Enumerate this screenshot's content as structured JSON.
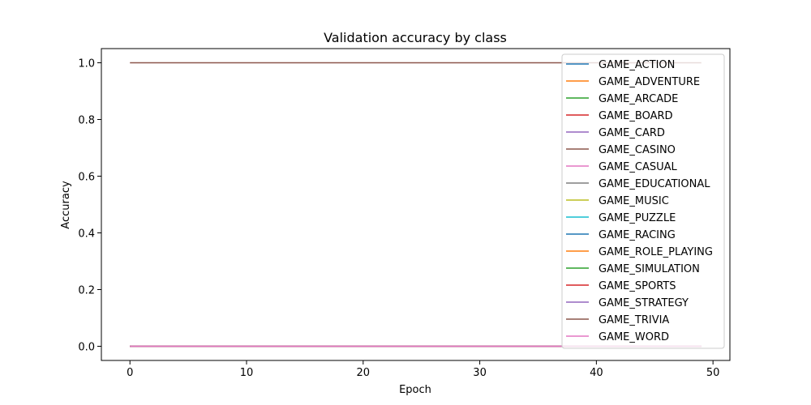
{
  "chart_data": {
    "type": "line",
    "title": "Validation accuracy by class",
    "xlabel": "Epoch",
    "ylabel": "Accuracy",
    "xlim": [
      -2.45,
      51.45
    ],
    "ylim": [
      -0.05,
      1.05
    ],
    "xticks": [
      0,
      10,
      20,
      30,
      40,
      50
    ],
    "yticks": [
      0.0,
      0.2,
      0.4,
      0.6,
      0.8,
      1.0
    ],
    "xtick_labels": [
      "0",
      "10",
      "20",
      "30",
      "40",
      "50"
    ],
    "ytick_labels": [
      "0.0",
      "0.2",
      "0.4",
      "0.6",
      "0.8",
      "1.0"
    ],
    "grid": false,
    "legend_position": "top-right",
    "x_range": [
      0,
      49
    ],
    "series": [
      {
        "name": "GAME_ACTION",
        "color": "#1f77b4",
        "values": "constant 0.0 for epochs 0-49",
        "y": 0.0
      },
      {
        "name": "GAME_ADVENTURE",
        "color": "#ff7f0e",
        "y": 0.0
      },
      {
        "name": "GAME_ARCADE",
        "color": "#2ca02c",
        "y": 0.0
      },
      {
        "name": "GAME_BOARD",
        "color": "#d62728",
        "y": 0.0
      },
      {
        "name": "GAME_CARD",
        "color": "#9467bd",
        "y": 0.0
      },
      {
        "name": "GAME_CASINO",
        "color": "#8c564b",
        "y": 1.0
      },
      {
        "name": "GAME_CASUAL",
        "color": "#e377c2",
        "y": 0.0
      },
      {
        "name": "GAME_EDUCATIONAL",
        "color": "#7f7f7f",
        "y": 0.0
      },
      {
        "name": "GAME_MUSIC",
        "color": "#bcbd22",
        "y": 0.0
      },
      {
        "name": "GAME_PUZZLE",
        "color": "#17becf",
        "y": 0.0
      },
      {
        "name": "GAME_RACING",
        "color": "#1f77b4",
        "y": 0.0
      },
      {
        "name": "GAME_ROLE_PLAYING",
        "color": "#ff7f0e",
        "y": 0.0
      },
      {
        "name": "GAME_SIMULATION",
        "color": "#2ca02c",
        "y": 0.0
      },
      {
        "name": "GAME_SPORTS",
        "color": "#d62728",
        "y": 0.0
      },
      {
        "name": "GAME_STRATEGY",
        "color": "#9467bd",
        "y": 0.0
      },
      {
        "name": "GAME_TRIVIA",
        "color": "#8c564b",
        "y": 0.0
      },
      {
        "name": "GAME_WORD",
        "color": "#e377c2",
        "y": 0.0
      }
    ]
  }
}
